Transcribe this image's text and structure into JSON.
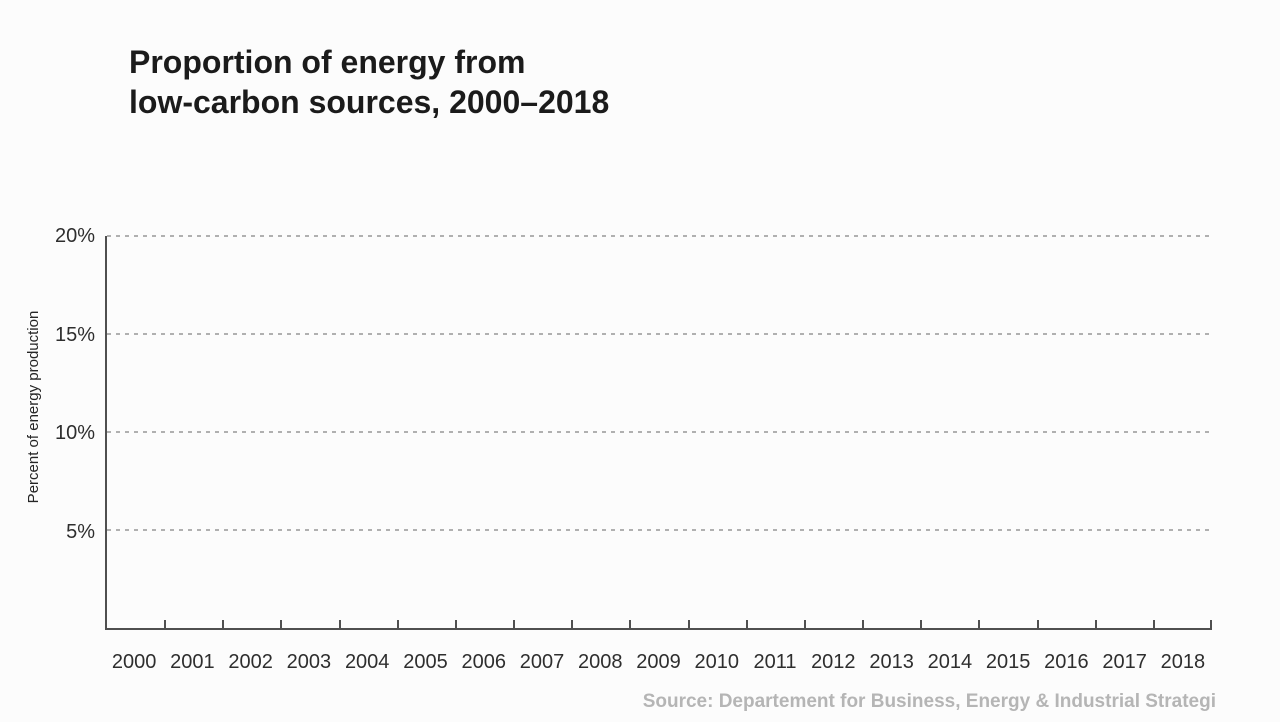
{
  "figure": {
    "title_lines": [
      "Proportion of energy from",
      "low-carbon sources, 2000–2018"
    ],
    "y_axis_label": "Percent of energy production",
    "y_tick_labels": [
      "20%",
      "15%",
      "10%",
      "5%"
    ],
    "x_tick_labels": [
      "2000",
      "2001",
      "2002",
      "2003",
      "2004",
      "2005",
      "2006",
      "2007",
      "2008",
      "2009",
      "2010",
      "2011",
      "2012",
      "2013",
      "2014",
      "2015",
      "2016",
      "2017",
      "2018"
    ],
    "source_text": "Source: Departement for Business, Energy & Industrial Strategi",
    "colors": {
      "background": "#fcfcfc",
      "title": "#1b1b1b",
      "axis_line": "#4f4f4f",
      "gridline": "#b0b0b0",
      "tick_label": "#2e2e2e",
      "source": "#b5b5b5"
    }
  },
  "chart_data": {
    "type": "line",
    "title": "Proportion of energy from low-carbon sources, 2000–2018",
    "categories": [
      2000,
      2001,
      2002,
      2003,
      2004,
      2005,
      2006,
      2007,
      2008,
      2009,
      2010,
      2011,
      2012,
      2013,
      2014,
      2015,
      2016,
      2017,
      2018
    ],
    "series": [],
    "note": "Plot area is empty in this frame; axes and gridlines are drawn but no series values are rendered.",
    "xlabel": "",
    "ylabel": "Percent of energy production",
    "ylim": [
      0,
      20
    ],
    "yticks": [
      5,
      10,
      15,
      20
    ],
    "ytick_format": "percent",
    "grid": "horizontal dashed",
    "legend": "none",
    "source": "Source: Departement for Business, Energy & Industrial Strategi"
  }
}
